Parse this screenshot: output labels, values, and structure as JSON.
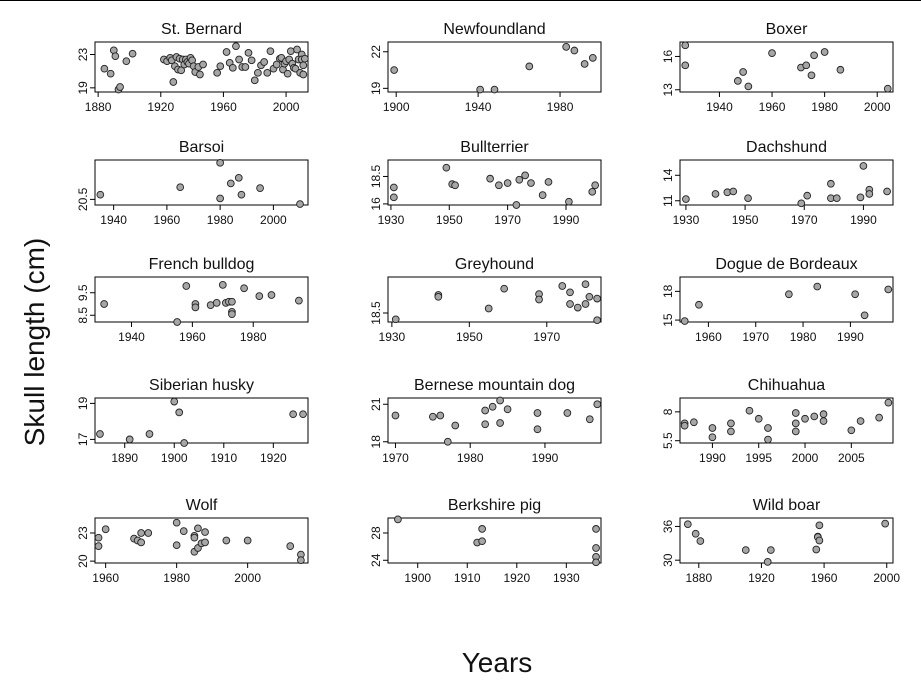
{
  "chart_data": {
    "type": "scatter",
    "ylabel": "Skull length (cm)",
    "xlabel": "Years",
    "point_fill": "#a6a6a6",
    "point_stroke": "#222222",
    "panels": [
      {
        "title": "St. Bernard",
        "xlim": [
          1878,
          2014
        ],
        "ylim": [
          18.5,
          24.5
        ],
        "xticks": [
          1880,
          1920,
          1960,
          2000
        ],
        "yticks": [
          19,
          23
        ],
        "x": [
          1884,
          1888,
          1890,
          1891,
          1893,
          1894,
          1898,
          1902,
          1922,
          1924,
          1926,
          1927,
          1928,
          1929,
          1930,
          1931,
          1932,
          1933,
          1934,
          1935,
          1936,
          1937,
          1938,
          1939,
          1940,
          1941,
          1942,
          1944,
          1945,
          1947,
          1956,
          1958,
          1962,
          1964,
          1966,
          1968,
          1970,
          1972,
          1974,
          1976,
          1978,
          1980,
          1982,
          1984,
          1986,
          1988,
          1990,
          1992,
          1994,
          1996,
          1997,
          1998,
          1999,
          2000,
          2001,
          2002,
          2003,
          2004,
          2005,
          2006,
          2007,
          2008,
          2009,
          2010,
          2010,
          2011,
          2011,
          2012
        ],
        "y": [
          21.3,
          20.7,
          23.5,
          22.8,
          18.8,
          19.1,
          22.2,
          23.1,
          22.4,
          22.2,
          22.6,
          22.3,
          19.7,
          21.6,
          22.7,
          21.2,
          22.5,
          21.1,
          22.4,
          21.8,
          22.4,
          22.1,
          21.9,
          22.6,
          22.3,
          21.6,
          20.9,
          21.5,
          20.6,
          21.8,
          20.8,
          21.6,
          23.3,
          22.0,
          21.4,
          24.0,
          22.4,
          21.5,
          21.5,
          23.2,
          22.3,
          19.9,
          20.8,
          21.7,
          22.1,
          20.8,
          23.4,
          21.3,
          21.8,
          22.5,
          22.6,
          21.2,
          21.9,
          22.2,
          20.7,
          22.4,
          23.4,
          21.9,
          21.4,
          21.3,
          23.6,
          22.4,
          20.8,
          23.0,
          22.4,
          21.7,
          20.6,
          22.5
        ]
      },
      {
        "title": "Newfoundland",
        "xlim": [
          1896,
          2000
        ],
        "ylim": [
          18.7,
          22.8
        ],
        "xticks": [
          1900,
          1940,
          1980
        ],
        "yticks": [
          19,
          22
        ],
        "x": [
          1899,
          1941,
          1948,
          1965,
          1983,
          1987,
          1992,
          1996
        ],
        "y": [
          20.5,
          18.9,
          18.9,
          20.8,
          22.4,
          22.1,
          21.0,
          21.5
        ]
      },
      {
        "title": "Boxer",
        "xlim": [
          1925,
          2006
        ],
        "ylim": [
          12.8,
          17.3
        ],
        "xticks": [
          1940,
          1960,
          1980,
          2000
        ],
        "yticks": [
          13,
          16
        ],
        "x": [
          1927,
          1927,
          1947,
          1949,
          1951,
          1960,
          1971,
          1973,
          1975,
          1976,
          1980,
          1986,
          2004
        ],
        "y": [
          17.0,
          15.2,
          13.8,
          14.6,
          13.3,
          16.3,
          15.0,
          15.2,
          14.3,
          16.1,
          16.4,
          14.8,
          13.1
        ]
      },
      {
        "title": "Barsoi",
        "xlim": [
          1933,
          2013
        ],
        "ylim": [
          19.9,
          24.7
        ],
        "xticks": [
          1940,
          1960,
          1980,
          2000
        ],
        "yticks": [
          20.5
        ],
        "x": [
          1935,
          1965,
          1980,
          1980,
          1984,
          1987,
          1988,
          1995,
          2010
        ],
        "y": [
          21.0,
          21.8,
          24.4,
          20.6,
          22.2,
          22.8,
          21.0,
          21.7,
          20.0
        ]
      },
      {
        "title": "Bullterrier",
        "xlim": [
          1929,
          2002
        ],
        "ylim": [
          15.9,
          20.0
        ],
        "xticks": [
          1930,
          1950,
          1970,
          1990
        ],
        "yticks": [
          16.0,
          18.5
        ],
        "x": [
          1931,
          1931,
          1949,
          1951,
          1952,
          1964,
          1967,
          1970,
          1973,
          1974,
          1976,
          1978,
          1982,
          1984,
          1991,
          1999,
          2000
        ],
        "y": [
          17.5,
          16.6,
          19.3,
          17.8,
          17.7,
          18.3,
          17.7,
          17.9,
          15.9,
          18.2,
          18.6,
          17.9,
          16.8,
          18.0,
          16.2,
          17.1,
          17.7
        ]
      },
      {
        "title": "Dachshund",
        "xlim": [
          1928,
          2000
        ],
        "ylim": [
          10.5,
          15.8
        ],
        "xticks": [
          1930,
          1950,
          1970,
          1990
        ],
        "yticks": [
          11,
          14
        ],
        "x": [
          1930,
          1940,
          1944,
          1946,
          1951,
          1969,
          1971,
          1979,
          1979,
          1981,
          1989,
          1990,
          1992,
          1992,
          1998
        ],
        "y": [
          11.2,
          11.8,
          12.0,
          12.1,
          11.3,
          10.7,
          11.6,
          13.0,
          11.3,
          11.3,
          11.4,
          15.1,
          12.3,
          11.8,
          12.1
        ]
      },
      {
        "title": "French bulldog",
        "xlim": [
          1928,
          1998
        ],
        "ylim": [
          8.2,
          10.2
        ],
        "xticks": [
          1940,
          1960,
          1980
        ],
        "yticks": [
          8.5,
          9.5
        ],
        "x": [
          1931,
          1955,
          1958,
          1961,
          1961,
          1966,
          1968,
          1970,
          1971,
          1972,
          1973,
          1973,
          1973,
          1977,
          1982,
          1986,
          1995
        ],
        "y": [
          9.0,
          8.2,
          9.8,
          9.0,
          8.85,
          8.95,
          9.05,
          9.85,
          9.05,
          9.1,
          8.65,
          8.55,
          9.1,
          9.7,
          9.35,
          9.4,
          9.15
        ]
      },
      {
        "title": "Greyhound",
        "xlim": [
          1929,
          1984
        ],
        "ylim": [
          17.5,
          22.5
        ],
        "xticks": [
          1930,
          1950,
          1970
        ],
        "yticks": [
          18.5
        ],
        "x": [
          1931,
          1942,
          1942,
          1955,
          1959,
          1968,
          1968,
          1974,
          1976,
          1976,
          1978,
          1980,
          1980,
          1981,
          1983,
          1983
        ],
        "y": [
          17.8,
          20.5,
          20.3,
          19.0,
          21.2,
          20.6,
          20.0,
          21.5,
          19.5,
          20.8,
          19.1,
          19.5,
          21.7,
          20.3,
          20.1,
          17.7
        ]
      },
      {
        "title": "Dogue de Bordeaux",
        "xlim": [
          1954,
          1999
        ],
        "ylim": [
          14.8,
          19.5
        ],
        "xticks": [
          1960,
          1970,
          1980,
          1990
        ],
        "yticks": [
          15,
          18
        ],
        "x": [
          1955,
          1958,
          1977,
          1983,
          1991,
          1993,
          1998
        ],
        "y": [
          14.9,
          16.6,
          17.7,
          18.5,
          17.7,
          15.5,
          18.2
        ]
      },
      {
        "title": "Siberian husky",
        "xlim": [
          1884,
          1927
        ],
        "ylim": [
          16.8,
          19.3
        ],
        "xticks": [
          1890,
          1900,
          1910,
          1920
        ],
        "yticks": [
          17.0,
          19.0
        ],
        "x": [
          1885,
          1891,
          1895,
          1900,
          1901,
          1902,
          1924,
          1926
        ],
        "y": [
          17.3,
          17.0,
          17.3,
          19.1,
          18.5,
          16.8,
          18.4,
          18.4
        ]
      },
      {
        "title": "Bernese mountain dog",
        "xlim": [
          1969,
          1997.5
        ],
        "ylim": [
          17.9,
          21.5
        ],
        "xticks": [
          1970,
          1980,
          1990
        ],
        "yticks": [
          18.0,
          21.0
        ],
        "x": [
          1970,
          1975,
          1976,
          1977,
          1978,
          1982,
          1982,
          1983,
          1984,
          1984,
          1985,
          1989,
          1989,
          1993,
          1996,
          1997
        ],
        "y": [
          20.1,
          20.0,
          20.1,
          18.0,
          19.3,
          19.4,
          20.5,
          20.8,
          19.5,
          21.3,
          20.6,
          19.0,
          20.3,
          20.3,
          19.8,
          21.0
        ]
      },
      {
        "title": "Chihuahua",
        "xlim": [
          1986.5,
          2009.5
        ],
        "ylim": [
          5.3,
          9.2
        ],
        "xticks": [
          1990,
          1995,
          2000,
          2005
        ],
        "yticks": [
          5.5,
          8.0
        ],
        "x": [
          1987,
          1987,
          1988,
          1990,
          1990,
          1992,
          1992,
          1994,
          1995,
          1996,
          1996,
          1999,
          1999,
          1999,
          2000,
          2001,
          2002,
          2002,
          2005,
          2006,
          2008,
          2009
        ],
        "y": [
          7.0,
          6.8,
          7.1,
          6.6,
          5.8,
          6.3,
          7.0,
          8.1,
          7.4,
          6.6,
          5.6,
          7.9,
          7.0,
          6.3,
          7.4,
          7.6,
          7.8,
          7.2,
          6.4,
          7.2,
          7.5,
          8.8
        ]
      },
      {
        "title": "Wolf",
        "xlim": [
          1957,
          2017
        ],
        "ylim": [
          19.8,
          24.6
        ],
        "xticks": [
          1960,
          1980,
          2000
        ],
        "yticks": [
          20,
          23
        ],
        "x": [
          1958,
          1958,
          1960,
          1968,
          1969,
          1970,
          1970,
          1972,
          1980,
          1980,
          1982,
          1985,
          1985,
          1985,
          1986,
          1986,
          1987,
          1988,
          1988,
          1994,
          2000,
          2012,
          2015,
          2015
        ],
        "y": [
          22.5,
          21.6,
          23.4,
          22.4,
          22.2,
          22.0,
          23.0,
          23.0,
          24.1,
          21.7,
          23.2,
          22.7,
          22.5,
          21.0,
          23.5,
          21.4,
          21.9,
          22.0,
          23.1,
          22.2,
          22.2,
          21.6,
          20.7,
          20.1
        ]
      },
      {
        "title": "Berkshire pig",
        "xlim": [
          1894,
          1937
        ],
        "ylim": [
          23.6,
          30.2
        ],
        "xticks": [
          1900,
          1910,
          1920,
          1930
        ],
        "yticks": [
          24,
          28
        ],
        "x": [
          1896,
          1912,
          1913,
          1913,
          1936,
          1936,
          1936,
          1936
        ],
        "y": [
          30.0,
          26.6,
          28.6,
          26.8,
          28.6,
          25.8,
          24.5,
          23.7
        ]
      },
      {
        "title": "Wild boar",
        "xlim": [
          1868,
          2004
        ],
        "ylim": [
          29.5,
          37.5
        ],
        "xticks": [
          1880,
          1920,
          1960,
          2000
        ],
        "yticks": [
          30,
          36
        ],
        "x": [
          1873,
          1878,
          1881,
          1910,
          1924,
          1926,
          1955,
          1956,
          1956,
          1957,
          1957,
          1999
        ],
        "y": [
          36.4,
          34.7,
          33.4,
          31.8,
          29.7,
          31.8,
          31.9,
          34.2,
          34.1,
          33.5,
          36.2,
          36.5
        ]
      }
    ]
  }
}
